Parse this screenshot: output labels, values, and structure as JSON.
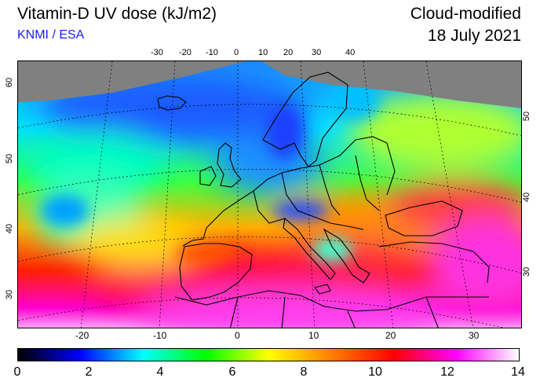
{
  "header": {
    "title": "Vitamin-D UV dose (kJ/m2)",
    "credit": "KNMI / ESA",
    "subtitle": "Cloud-modified",
    "date": "18 July 2021"
  },
  "map": {
    "top_lon_labels": [
      "-30",
      "-20",
      "-10",
      "0",
      "10",
      "20",
      "30",
      "40"
    ],
    "bottom_lon_labels": [
      "-20",
      "-10",
      "0",
      "10",
      "20",
      "30"
    ],
    "left_lat_labels": [
      "60",
      "50",
      "40",
      "30"
    ],
    "right_lat_labels": [
      "50",
      "40",
      "30"
    ],
    "no_data_color": "#808080"
  },
  "colorbar": {
    "ticks": [
      "0",
      "2",
      "4",
      "6",
      "8",
      "10",
      "12",
      "14"
    ],
    "colors": [
      "#000000",
      "#0000ff",
      "#00ffff",
      "#00ff00",
      "#ffff00",
      "#ff8000",
      "#ff0000",
      "#ff00ff",
      "#ffffff"
    ]
  }
}
